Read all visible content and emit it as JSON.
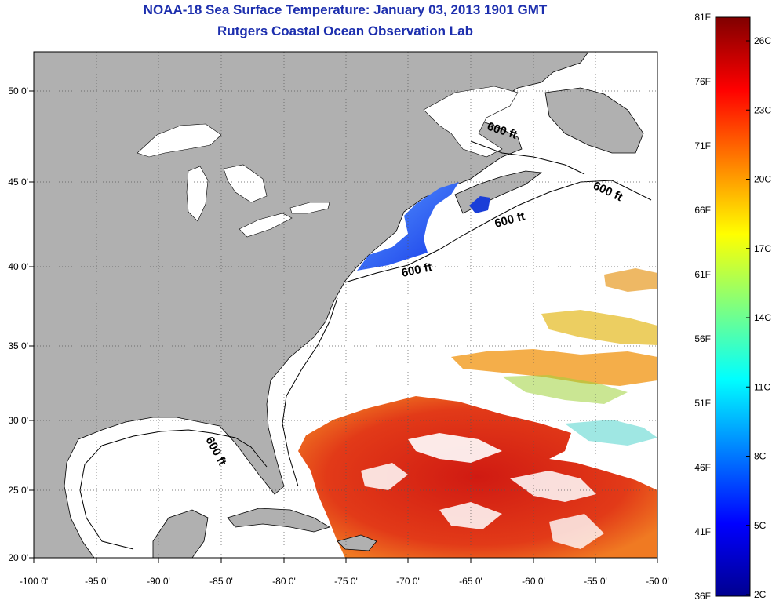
{
  "header": {
    "title": "NOAA-18 Sea Surface Temperature:  January 03, 2013 1901 GMT",
    "subtitle": "Rutgers Coastal Ocean Observation Lab"
  },
  "map": {
    "lon_ticks": [
      "-100 0'",
      "-95 0'",
      "-90 0'",
      "-85 0'",
      "-80 0'",
      "-75 0'",
      "-70 0'",
      "-65 0'",
      "-60 0'",
      "-55 0'",
      "-50 0'"
    ],
    "lat_ticks": [
      "50 0'",
      "45 0'",
      "40 0'",
      "35 0'",
      "30 0'",
      "25 0'",
      "20 0'"
    ],
    "isobath_label": "600 ft",
    "colors": {
      "land": "#b0b0b0",
      "ocean_nodata": "#ffffff",
      "sst_cold": "#1e3cff",
      "sst_warm": "#d21414"
    }
  },
  "colorbar": {
    "fahrenheit_labels": [
      "81F",
      "76F",
      "71F",
      "66F",
      "61F",
      "56F",
      "51F",
      "46F",
      "41F",
      "36F"
    ],
    "celsius_labels": [
      "26C",
      "23C",
      "20C",
      "17C",
      "14C",
      "11C",
      "8C",
      "5C",
      "2C"
    ],
    "colormap": "jet"
  }
}
